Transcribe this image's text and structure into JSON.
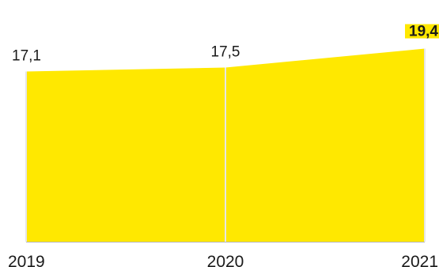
{
  "chart_data": {
    "type": "area",
    "categories": [
      "2019",
      "2020",
      "2021"
    ],
    "values": [
      17.1,
      17.5,
      19.4
    ],
    "value_labels": [
      "17,1",
      "17,5",
      "19,4"
    ],
    "highlight_index": 2,
    "ylim": [
      0,
      20
    ],
    "grid": false,
    "legend": "none",
    "colors": {
      "fill": "#FFE800",
      "separator": "#E6E6E6",
      "baseline": "#B8B8B8",
      "highlight": "#FFE800",
      "text": "#1A1A1A"
    }
  }
}
